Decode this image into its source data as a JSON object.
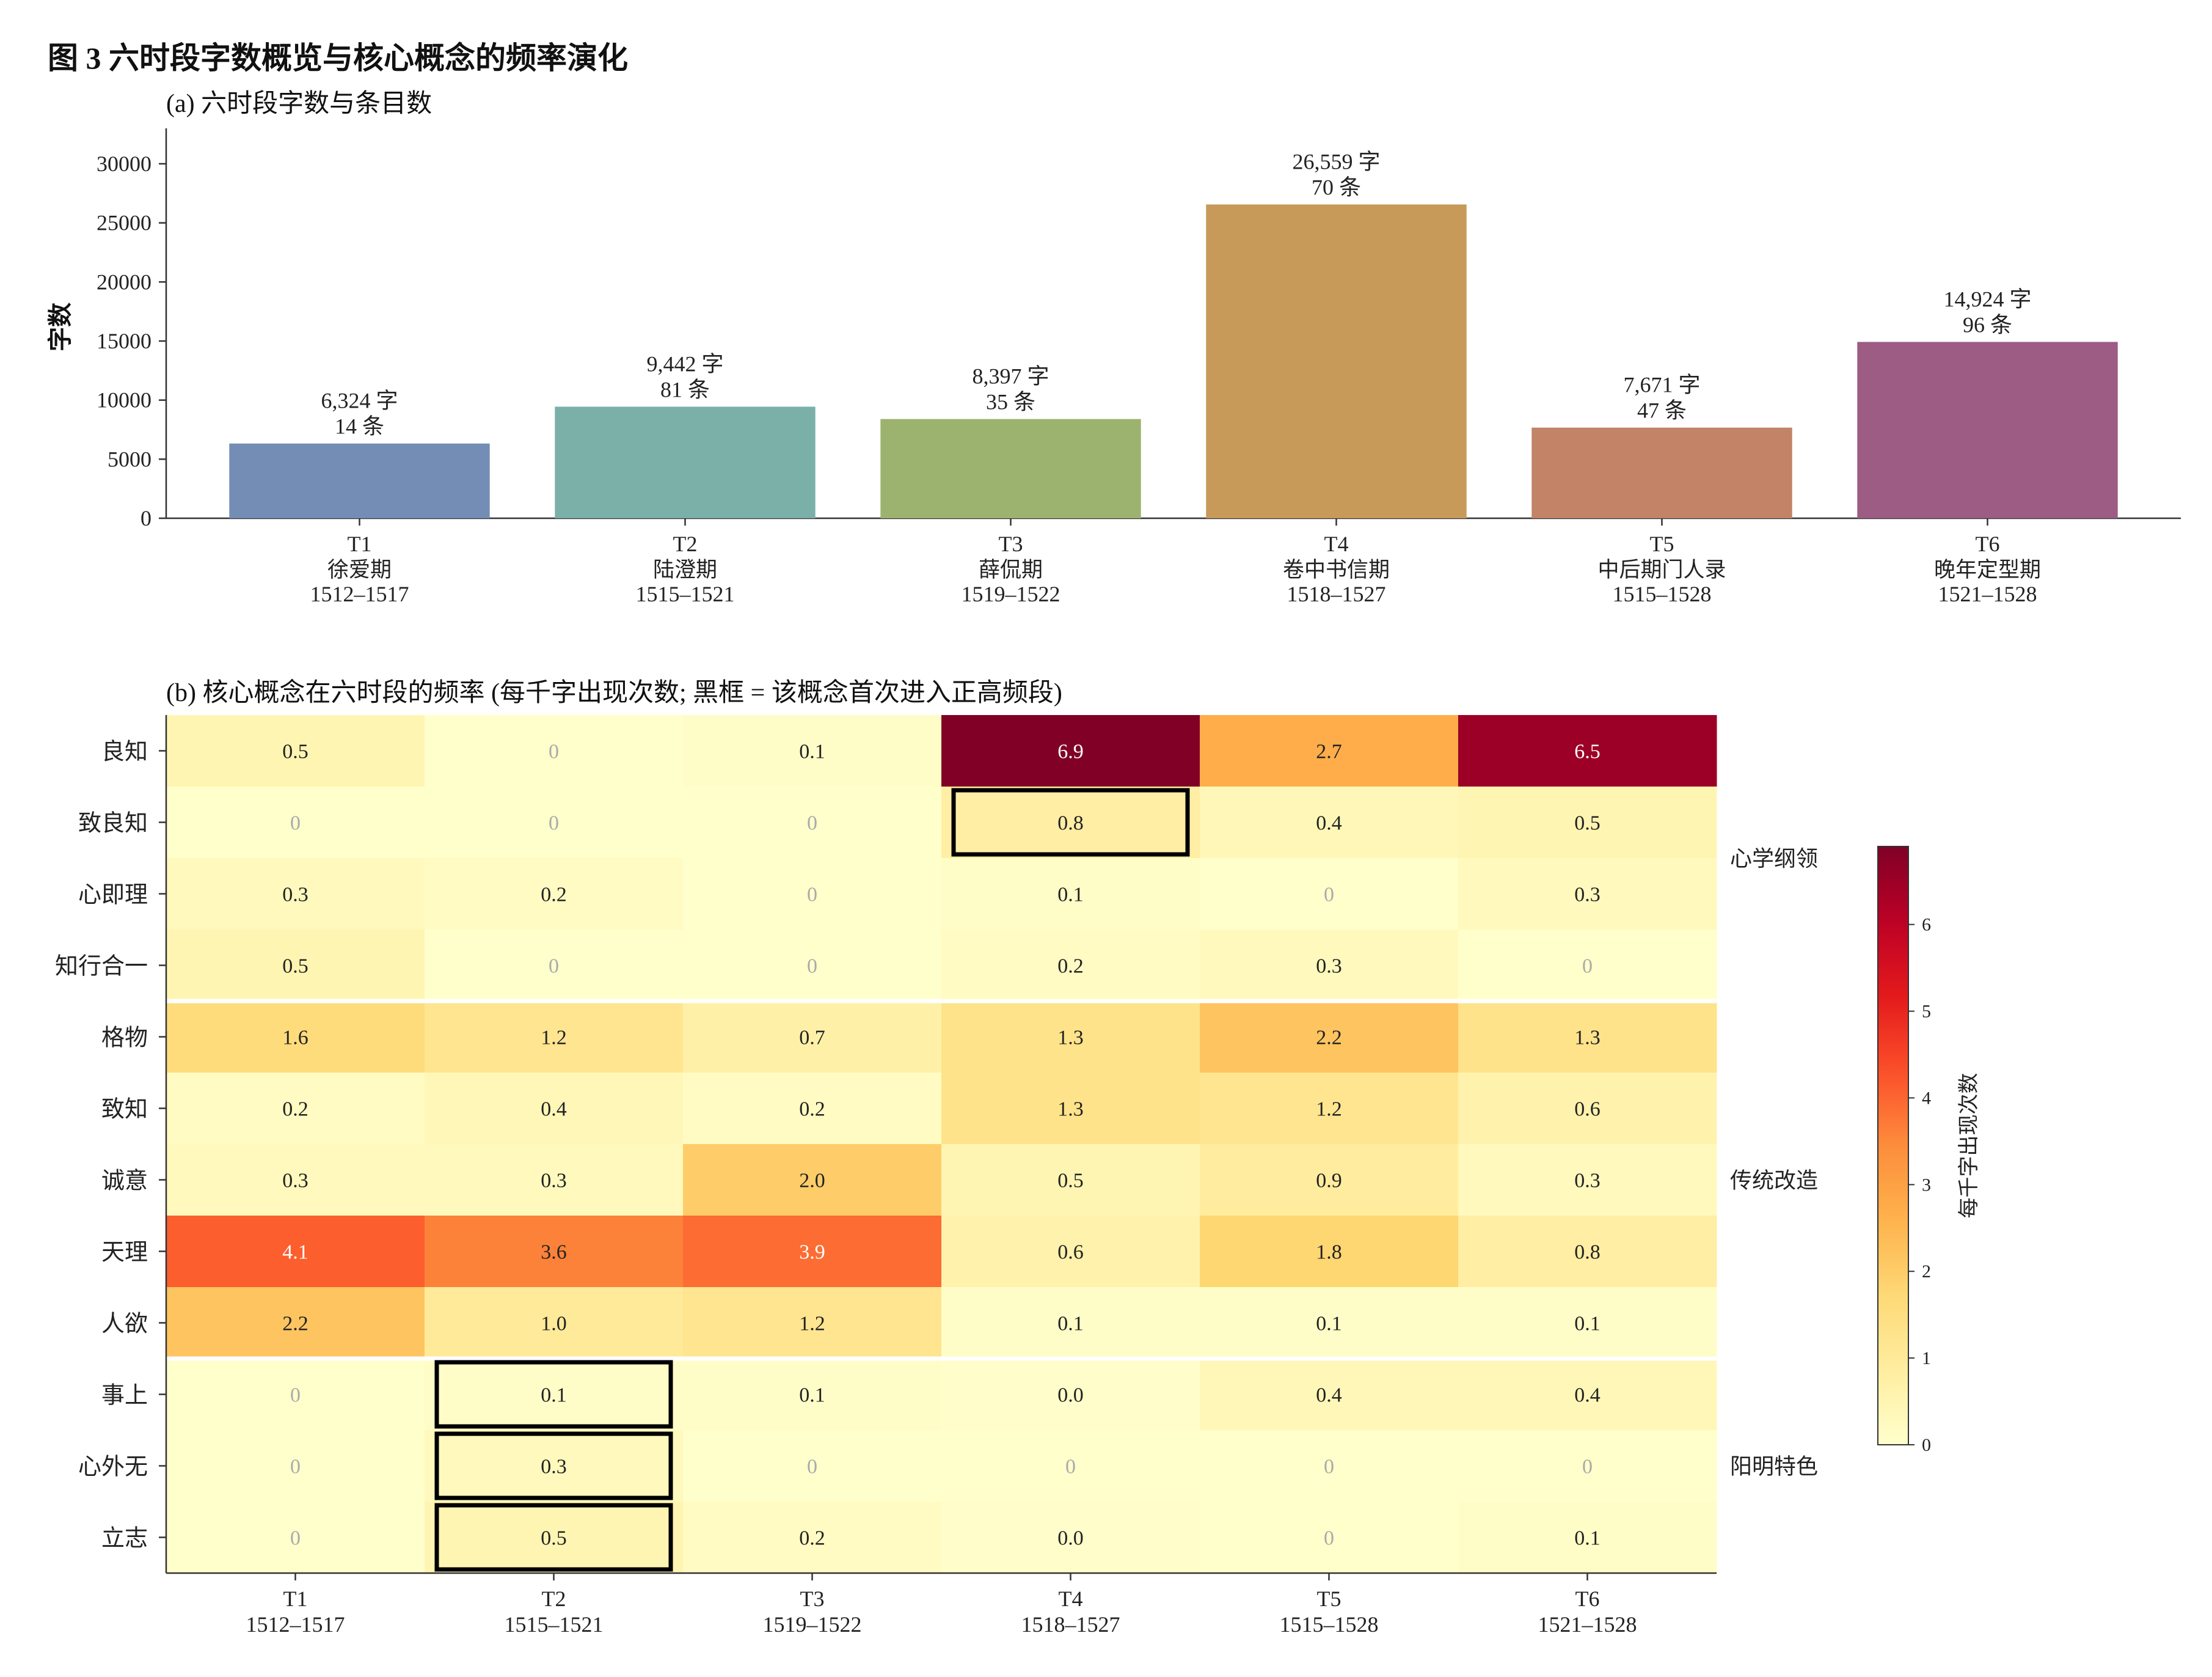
{
  "figure": {
    "title": "图 3  六时段字数概览与核心概念的频率演化"
  },
  "chart_data": [
    {
      "type": "bar",
      "title": "(a)  六时段字数与条目数",
      "ylabel": "字数",
      "ylim": [
        0,
        33000
      ],
      "yticks": [
        0,
        5000,
        10000,
        15000,
        20000,
        25000,
        30000
      ],
      "categories": [
        {
          "code": "T1",
          "name": "徐爱期",
          "years": "1512–1517"
        },
        {
          "code": "T2",
          "name": "陆澄期",
          "years": "1515–1521"
        },
        {
          "code": "T3",
          "name": "薛侃期",
          "years": "1519–1522"
        },
        {
          "code": "T4",
          "name": "卷中书信期",
          "years": "1518–1527"
        },
        {
          "code": "T5",
          "name": "中后期门人录",
          "years": "1515–1528"
        },
        {
          "code": "T6",
          "name": "晚年定型期",
          "years": "1521–1528"
        }
      ],
      "values": [
        6324,
        9442,
        8397,
        26559,
        7671,
        14924
      ],
      "value_labels": [
        "6,324 字",
        "9,442 字",
        "8,397 字",
        "26,559 字",
        "7,671 字",
        "14,924 字"
      ],
      "entry_labels": [
        "14 条",
        "81 条",
        "35 条",
        "70 条",
        "47 条",
        "96 条"
      ],
      "colors": [
        "#738db5",
        "#7ab0a8",
        "#9cb36f",
        "#c79a59",
        "#c28367",
        "#9c5c84"
      ],
      "grid": false
    },
    {
      "type": "heatmap",
      "title": "(b)  核心概念在六时段的频率 (每千字出现次数; 黑框 = 该概念首次进入正高频段)",
      "columns": [
        {
          "code": "T1",
          "years": "1512–1517"
        },
        {
          "code": "T2",
          "years": "1515–1521"
        },
        {
          "code": "T3",
          "years": "1519–1522"
        },
        {
          "code": "T4",
          "years": "1518–1527"
        },
        {
          "code": "T5",
          "years": "1515–1528"
        },
        {
          "code": "T6",
          "years": "1521–1528"
        }
      ],
      "rows": [
        "良知",
        "致良知",
        "心即理",
        "知行合一",
        "格物",
        "致知",
        "诚意",
        "天理",
        "人欲",
        "事上",
        "心外无",
        "立志"
      ],
      "values": [
        [
          0.5,
          0,
          0.1,
          6.9,
          2.7,
          6.5
        ],
        [
          0,
          0,
          0,
          0.8,
          0.4,
          0.5
        ],
        [
          0.3,
          0.2,
          0,
          0.1,
          0,
          0.3
        ],
        [
          0.5,
          0,
          0,
          0.2,
          0.3,
          0
        ],
        [
          1.6,
          1.2,
          0.7,
          1.3,
          2.2,
          1.3
        ],
        [
          0.2,
          0.4,
          0.2,
          1.3,
          1.2,
          0.6
        ],
        [
          0.3,
          0.3,
          2.0,
          0.5,
          0.9,
          0.3
        ],
        [
          4.1,
          3.6,
          3.9,
          0.6,
          1.8,
          0.8
        ],
        [
          2.2,
          1.0,
          1.2,
          0.1,
          0.1,
          0.1
        ],
        [
          0,
          0.1,
          0.1,
          0.04,
          0.4,
          0.4
        ],
        [
          0,
          0.3,
          0,
          0,
          0,
          0
        ],
        [
          0,
          0.5,
          0.2,
          0.03,
          0,
          0.1
        ]
      ],
      "cell_labels": [
        [
          "0.5",
          "0",
          "0.1",
          "6.9",
          "2.7",
          "6.5"
        ],
        [
          "0",
          "0",
          "0",
          "0.8",
          "0.4",
          "0.5"
        ],
        [
          "0.3",
          "0.2",
          "0",
          "0.1",
          "0",
          "0.3"
        ],
        [
          "0.5",
          "0",
          "0",
          "0.2",
          "0.3",
          "0"
        ],
        [
          "1.6",
          "1.2",
          "0.7",
          "1.3",
          "2.2",
          "1.3"
        ],
        [
          "0.2",
          "0.4",
          "0.2",
          "1.3",
          "1.2",
          "0.6"
        ],
        [
          "0.3",
          "0.3",
          "2.0",
          "0.5",
          "0.9",
          "0.3"
        ],
        [
          "4.1",
          "3.6",
          "3.9",
          "0.6",
          "1.8",
          "0.8"
        ],
        [
          "2.2",
          "1.0",
          "1.2",
          "0.1",
          "0.1",
          "0.1"
        ],
        [
          "0",
          "0.1",
          "0.1",
          "0.0",
          "0.4",
          "0.4"
        ],
        [
          "0",
          "0.3",
          "0",
          "0",
          "0",
          "0"
        ],
        [
          "0",
          "0.5",
          "0.2",
          "0.0",
          "0",
          "0.1"
        ]
      ],
      "groups": [
        {
          "label": "心学纲领",
          "rows": [
            0,
            3
          ]
        },
        {
          "label": "传统改造",
          "rows": [
            4,
            8
          ]
        },
        {
          "label": "阳明特色",
          "rows": [
            9,
            11
          ]
        }
      ],
      "highlight_boxes": [
        {
          "row": 1,
          "col": 3
        },
        {
          "row": 9,
          "col": 1
        },
        {
          "row": 10,
          "col": 1
        },
        {
          "row": 11,
          "col": 1
        }
      ],
      "colorbar": {
        "label": "每千字出现次数",
        "range": [
          0,
          6.9
        ],
        "ticks": [
          0,
          1,
          2,
          3,
          4,
          5,
          6
        ],
        "colormap": "YlOrRd"
      }
    }
  ]
}
